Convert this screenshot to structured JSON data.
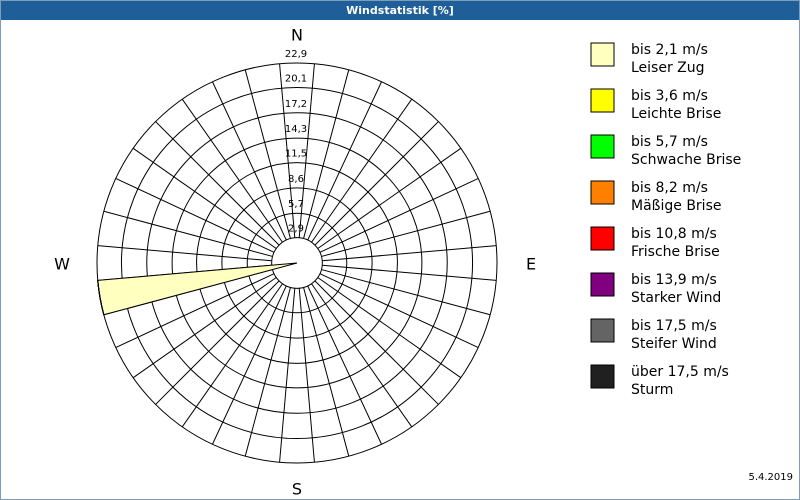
{
  "chart_data": {
    "type": "windrose",
    "title": "Windstatistik [%]",
    "compass": {
      "north": "N",
      "east": "E",
      "south": "S",
      "west": "W"
    },
    "directions": [
      260
    ],
    "sector_width": 10,
    "ylim": [
      0,
      22.9
    ],
    "yticks": [
      {
        "value": 2.9,
        "label": "2,9"
      },
      {
        "value": 5.7,
        "label": "5,7"
      },
      {
        "value": 8.6,
        "label": "8,6"
      },
      {
        "value": 11.5,
        "label": "11,5"
      },
      {
        "value": 14.3,
        "label": "14,3"
      },
      {
        "value": 17.2,
        "label": "17,2"
      },
      {
        "value": 20.1,
        "label": "20,1"
      },
      {
        "value": 22.9,
        "label": "22,9"
      }
    ],
    "series": [
      {
        "name": "bis 2,1 m/s",
        "description": "Leiser Zug",
        "color": "#ffffc0",
        "values": [
          22.9
        ]
      },
      {
        "name": "bis 3,6 m/s",
        "description": "Leichte Brise",
        "color": "#ffff00",
        "values": [
          0
        ]
      },
      {
        "name": "bis 5,7 m/s",
        "description": "Schwache Brise",
        "color": "#00ff00",
        "values": [
          0
        ]
      },
      {
        "name": "bis 8,2 m/s",
        "description": "Mäßige Brise",
        "color": "#ff8000",
        "values": [
          0
        ]
      },
      {
        "name": "bis 10,8 m/s",
        "description": "Frische Brise",
        "color": "#ff0000",
        "values": [
          0
        ]
      },
      {
        "name": "bis 13,9 m/s",
        "description": "Starker Wind",
        "color": "#800080",
        "values": [
          0
        ]
      },
      {
        "name": "bis 17,5 m/s",
        "description": "Steifer Wind",
        "color": "#646464",
        "values": [
          0
        ]
      },
      {
        "name": "über 17,5 m/s",
        "description": "Sturm",
        "color": "#202020",
        "values": [
          0
        ]
      }
    ],
    "date": "5.4.2019"
  }
}
